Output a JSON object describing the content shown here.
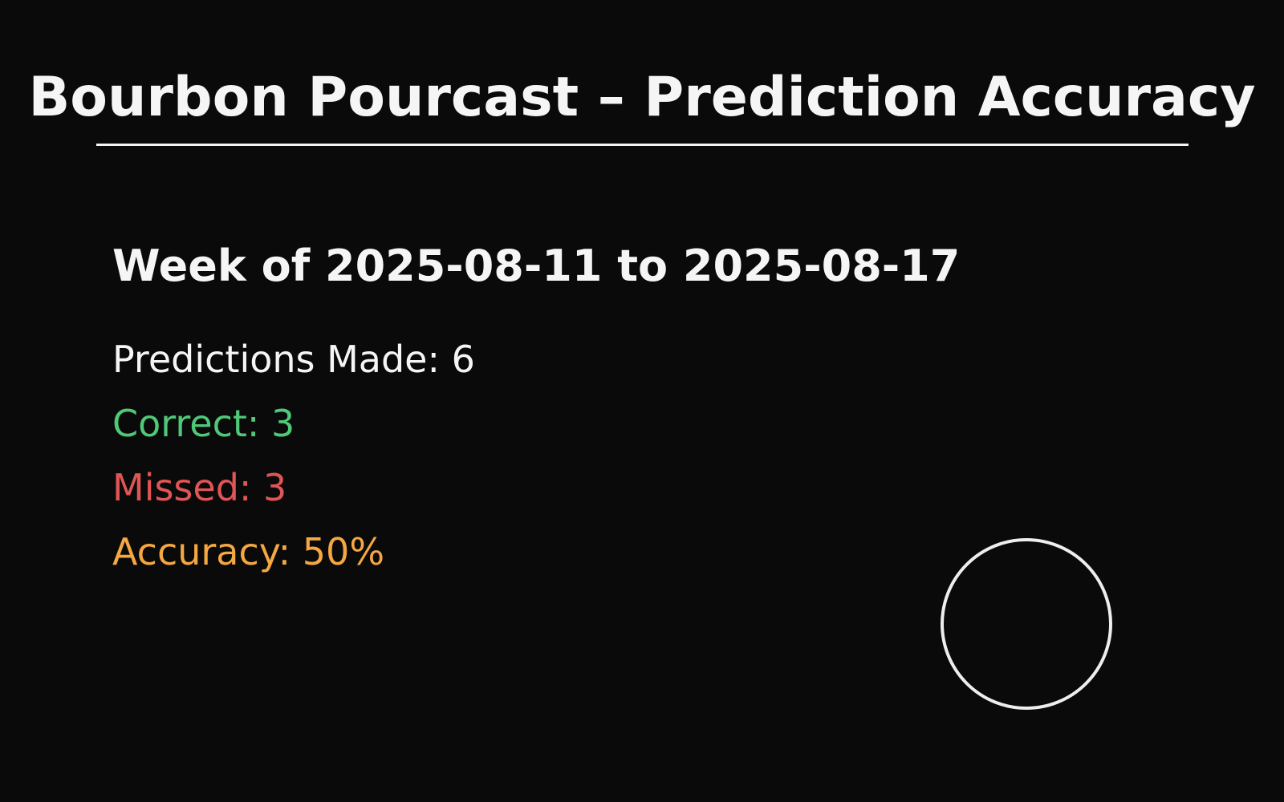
{
  "title": "Bourbon Pourcast – Prediction Accuracy",
  "week": {
    "label": "Week of 2025-08-11 to 2025-08-17"
  },
  "stats": {
    "predictions_made": "Predictions Made: 6",
    "correct": "Correct: 3",
    "missed": "Missed: 3",
    "accuracy": "Accuracy: 50%"
  },
  "accuracy_gauge": {
    "value": 0.5,
    "icon": "ring-gauge-icon"
  },
  "colors": {
    "background": "#0a0a0a",
    "text": "#f5f5f5",
    "correct": "#4fc978",
    "missed": "#e05555",
    "accuracy": "#f5a742"
  }
}
